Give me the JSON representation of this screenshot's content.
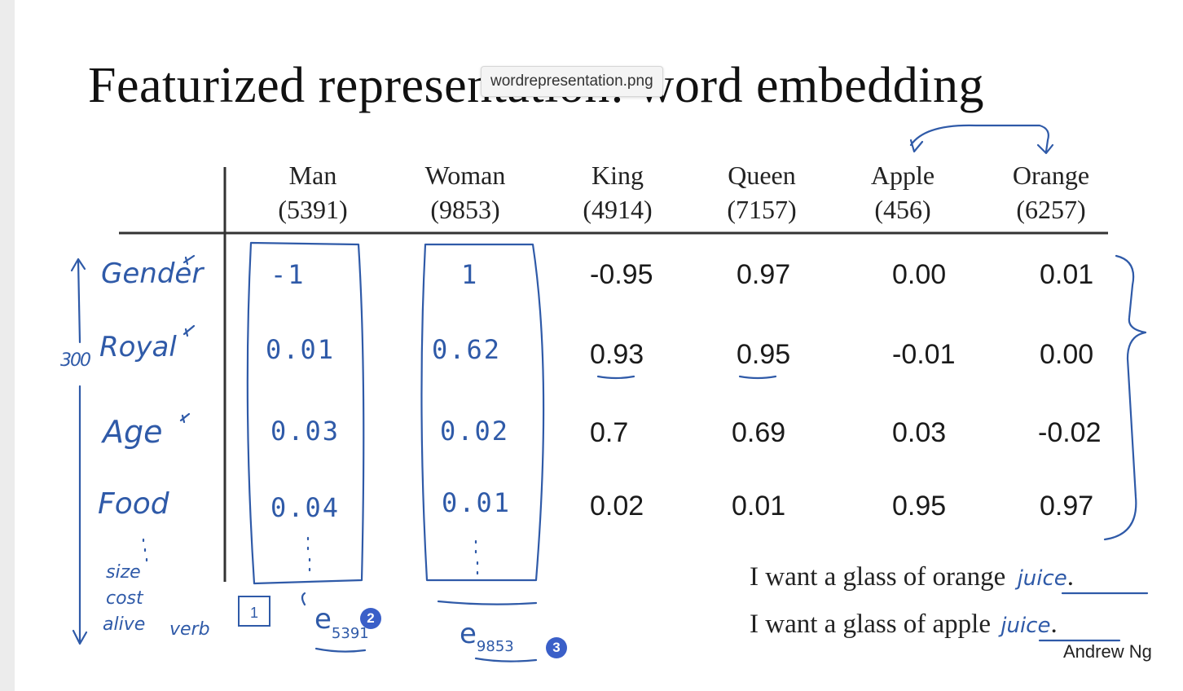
{
  "tooltip": "wordrepresentation.png",
  "title": "Featurized representation: word embedding",
  "columns": [
    {
      "word": "Man",
      "index": "(5391)"
    },
    {
      "word": "Woman",
      "index": "(9853)"
    },
    {
      "word": "King",
      "index": "(4914)"
    },
    {
      "word": "Queen",
      "index": "(7157)"
    },
    {
      "word": "Apple",
      "index": "(456)"
    },
    {
      "word": "Orange",
      "index": "(6257)"
    }
  ],
  "features": [
    "Gender",
    "Royal",
    "Age",
    "Food"
  ],
  "extra_features": [
    "size",
    "cost",
    "alive",
    "verb"
  ],
  "dimension_label": "300",
  "values": [
    [
      "-1",
      "1",
      "-0.95",
      "0.97",
      "0.00",
      "0.01"
    ],
    [
      "0.01",
      "0.62",
      "0.93",
      "0.95",
      "-0.01",
      "0.00"
    ],
    [
      "0.03",
      "0.02",
      "0.7",
      "0.69",
      "0.03",
      "-0.02"
    ],
    [
      "0.04",
      "0.01",
      "0.02",
      "0.01",
      "0.95",
      "0.97"
    ]
  ],
  "embeddings": {
    "man": "e",
    "man_sub": "5391",
    "woman": "e",
    "woman_sub": "9853"
  },
  "markers": {
    "box": "1",
    "badge_man": "2",
    "badge_woman": "3"
  },
  "sentences": [
    {
      "text": "I want a glass of orange",
      "fill": "juice",
      "end": "."
    },
    {
      "text": "I want a glass of apple",
      "fill": "juice",
      "end": "."
    }
  ],
  "credit": "Andrew Ng",
  "colors": {
    "ink": "#2f5aa8",
    "badge": "#3a5fc8",
    "text": "#1a1a1a"
  }
}
